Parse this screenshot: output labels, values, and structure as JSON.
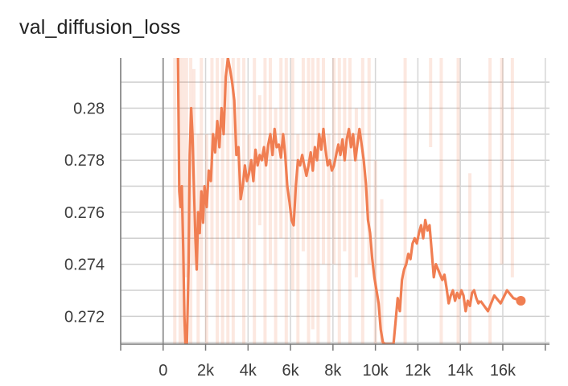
{
  "chart_data": {
    "type": "line",
    "title": "val_diffusion_loss",
    "xlabel": "",
    "ylabel": "",
    "xlim": [
      -2000,
      18200
    ],
    "ylim": [
      0.27093,
      0.28193
    ],
    "x_ticks": [
      0,
      2000,
      4000,
      6000,
      8000,
      10000,
      12000,
      14000,
      16000
    ],
    "x_tick_labels": [
      "0",
      "2k",
      "4k",
      "6k",
      "8k",
      "10k",
      "12k",
      "14k",
      "16k"
    ],
    "y_ticks": [
      0.272,
      0.274,
      0.276,
      0.278,
      0.28
    ],
    "y_tick_labels": [
      "0.272",
      "0.274",
      "0.276",
      "0.278",
      "0.28"
    ],
    "grid": true,
    "series": [
      {
        "color": "#f07e52",
        "smoothed": [
          [
            700,
            0.2825
          ],
          [
            760,
            0.2768
          ],
          [
            820,
            0.2762
          ],
          [
            880,
            0.277
          ],
          [
            950,
            0.2745
          ],
          [
            1000,
            0.272
          ],
          [
            1050,
            0.27
          ],
          [
            1120,
            0.269
          ],
          [
            1200,
            0.274
          ],
          [
            1250,
            0.2782
          ],
          [
            1320,
            0.28
          ],
          [
            1380,
            0.279
          ],
          [
            1450,
            0.277
          ],
          [
            1520,
            0.275
          ],
          [
            1580,
            0.2738
          ],
          [
            1650,
            0.276
          ],
          [
            1720,
            0.2752
          ],
          [
            1800,
            0.2768
          ],
          [
            1880,
            0.2756
          ],
          [
            1950,
            0.277
          ],
          [
            2050,
            0.2762
          ],
          [
            2150,
            0.2776
          ],
          [
            2250,
            0.2772
          ],
          [
            2350,
            0.279
          ],
          [
            2450,
            0.2783
          ],
          [
            2550,
            0.2795
          ],
          [
            2650,
            0.2785
          ],
          [
            2750,
            0.28
          ],
          [
            2850,
            0.279
          ],
          [
            2950,
            0.2812
          ],
          [
            3050,
            0.2822
          ],
          [
            3150,
            0.2815
          ],
          [
            3250,
            0.281
          ],
          [
            3350,
            0.2803
          ],
          [
            3450,
            0.2782
          ],
          [
            3550,
            0.2785
          ],
          [
            3650,
            0.2765
          ],
          [
            3750,
            0.277
          ],
          [
            3850,
            0.2778
          ],
          [
            3950,
            0.2772
          ],
          [
            4050,
            0.2775
          ],
          [
            4150,
            0.278
          ],
          [
            4250,
            0.2772
          ],
          [
            4350,
            0.2784
          ],
          [
            4450,
            0.2778
          ],
          [
            4550,
            0.2782
          ],
          [
            4650,
            0.278
          ],
          [
            4750,
            0.2785
          ],
          [
            4850,
            0.2778
          ],
          [
            4950,
            0.2786
          ],
          [
            5050,
            0.279
          ],
          [
            5150,
            0.2782
          ],
          [
            5250,
            0.2792
          ],
          [
            5350,
            0.2785
          ],
          [
            5450,
            0.2786
          ],
          [
            5550,
            0.2781
          ],
          [
            5650,
            0.279
          ],
          [
            5750,
            0.2782
          ],
          [
            5850,
            0.277
          ],
          [
            5950,
            0.2764
          ],
          [
            6050,
            0.2757
          ],
          [
            6150,
            0.2755
          ],
          [
            6250,
            0.277
          ],
          [
            6350,
            0.278
          ],
          [
            6450,
            0.2778
          ],
          [
            6550,
            0.2782
          ],
          [
            6650,
            0.2778
          ],
          [
            6750,
            0.2774
          ],
          [
            6850,
            0.2778
          ],
          [
            6950,
            0.2783
          ],
          [
            7050,
            0.2776
          ],
          [
            7150,
            0.2785
          ],
          [
            7250,
            0.278
          ],
          [
            7350,
            0.279
          ],
          [
            7450,
            0.2784
          ],
          [
            7550,
            0.2792
          ],
          [
            7650,
            0.2784
          ],
          [
            7750,
            0.2778
          ],
          [
            7850,
            0.278
          ],
          [
            7950,
            0.2776
          ],
          [
            8050,
            0.2778
          ],
          [
            8150,
            0.2782
          ],
          [
            8250,
            0.2786
          ],
          [
            8350,
            0.2782
          ],
          [
            8450,
            0.2788
          ],
          [
            8550,
            0.278
          ],
          [
            8650,
            0.2788
          ],
          [
            8750,
            0.2792
          ],
          [
            8850,
            0.2785
          ],
          [
            8950,
            0.279
          ],
          [
            9050,
            0.278
          ],
          [
            9150,
            0.2786
          ],
          [
            9250,
            0.2792
          ],
          [
            9350,
            0.2786
          ],
          [
            9450,
            0.278
          ],
          [
            9550,
            0.2771
          ],
          [
            9650,
            0.2757
          ],
          [
            9750,
            0.2752
          ],
          [
            9850,
            0.2742
          ],
          [
            9950,
            0.2735
          ],
          [
            10050,
            0.273
          ],
          [
            10150,
            0.2725
          ],
          [
            10250,
            0.2715
          ],
          [
            10350,
            0.271
          ],
          [
            10450,
            0.2708
          ],
          [
            10550,
            0.2705
          ],
          [
            10650,
            0.27
          ],
          [
            10750,
            0.27
          ],
          [
            10850,
            0.2705
          ],
          [
            10950,
            0.2718
          ],
          [
            11050,
            0.2727
          ],
          [
            11150,
            0.2722
          ],
          [
            11250,
            0.2734
          ],
          [
            11350,
            0.2738
          ],
          [
            11450,
            0.274
          ],
          [
            11550,
            0.2744
          ],
          [
            11650,
            0.2742
          ],
          [
            11750,
            0.2748
          ],
          [
            11850,
            0.275
          ],
          [
            11950,
            0.2748
          ],
          [
            12050,
            0.2752
          ],
          [
            12150,
            0.2755
          ],
          [
            12250,
            0.275
          ],
          [
            12350,
            0.2757
          ],
          [
            12450,
            0.2753
          ],
          [
            12550,
            0.2755
          ],
          [
            12650,
            0.2745
          ],
          [
            12750,
            0.2735
          ],
          [
            12850,
            0.274
          ],
          [
            12950,
            0.2738
          ],
          [
            13050,
            0.2736
          ],
          [
            13150,
            0.2734
          ],
          [
            13250,
            0.2736
          ],
          [
            13350,
            0.2731
          ],
          [
            13450,
            0.2725
          ],
          [
            13550,
            0.2728
          ],
          [
            13650,
            0.273
          ],
          [
            13750,
            0.2726
          ],
          [
            13850,
            0.2729
          ],
          [
            13950,
            0.2727
          ],
          [
            14050,
            0.273
          ],
          [
            14150,
            0.2728
          ],
          [
            14250,
            0.2722
          ],
          [
            14350,
            0.2726
          ],
          [
            14450,
            0.2724
          ],
          [
            14550,
            0.2729
          ],
          [
            14650,
            0.273
          ],
          [
            14750,
            0.2727
          ],
          [
            14850,
            0.2725
          ],
          [
            14950,
            0.2726
          ]
        ],
        "raw_spikes": [
          [
            550,
            0.27,
            0.2825
          ],
          [
            800,
            0.27,
            0.2825
          ],
          [
            950,
            0.27,
            0.2825
          ],
          [
            1100,
            0.2735,
            0.2825
          ],
          [
            1300,
            0.27,
            0.2825
          ],
          [
            1450,
            0.274,
            0.2815
          ],
          [
            1650,
            0.27,
            0.279
          ],
          [
            1800,
            0.273,
            0.2825
          ],
          [
            2050,
            0.27,
            0.279
          ],
          [
            2300,
            0.274,
            0.2825
          ],
          [
            2550,
            0.27,
            0.2825
          ],
          [
            2800,
            0.27,
            0.2825
          ],
          [
            3050,
            0.27,
            0.2825
          ],
          [
            3300,
            0.27,
            0.2825
          ],
          [
            3550,
            0.275,
            0.2825
          ],
          [
            3800,
            0.27,
            0.2825
          ],
          [
            4050,
            0.274,
            0.279
          ],
          [
            4300,
            0.27,
            0.2825
          ],
          [
            4550,
            0.2755,
            0.2805
          ],
          [
            4800,
            0.27,
            0.2825
          ],
          [
            5050,
            0.274,
            0.2825
          ],
          [
            5300,
            0.27,
            0.28
          ],
          [
            5550,
            0.275,
            0.2825
          ],
          [
            5800,
            0.27,
            0.2825
          ],
          [
            6100,
            0.273,
            0.2825
          ],
          [
            6350,
            0.27,
            0.279
          ],
          [
            6600,
            0.2745,
            0.2825
          ],
          [
            6850,
            0.27,
            0.2825
          ],
          [
            7050,
            0.2715,
            0.2825
          ],
          [
            7300,
            0.27,
            0.2825
          ],
          [
            7550,
            0.274,
            0.2825
          ],
          [
            7800,
            0.27,
            0.279
          ],
          [
            8050,
            0.274,
            0.2825
          ],
          [
            8300,
            0.27,
            0.2825
          ],
          [
            8550,
            0.2745,
            0.2825
          ],
          [
            8800,
            0.27,
            0.2825
          ],
          [
            9100,
            0.2735,
            0.28
          ],
          [
            9400,
            0.27,
            0.2825
          ],
          [
            9700,
            0.274,
            0.2825
          ],
          [
            10000,
            0.27,
            0.278
          ],
          [
            10300,
            0.27,
            0.2765
          ],
          [
            11400,
            0.27,
            0.2825
          ],
          [
            12600,
            0.2785,
            0.2825
          ],
          [
            13100,
            0.27,
            0.2825
          ],
          [
            13900,
            0.27,
            0.2825
          ],
          [
            14450,
            0.27,
            0.2775
          ],
          [
            15400,
            0.27,
            0.2825
          ],
          [
            15950,
            0.274,
            0.2825
          ],
          [
            16450,
            0.2735,
            0.2825
          ]
        ],
        "last_point": [
          16850,
          0.2726
        ]
      }
    ]
  }
}
